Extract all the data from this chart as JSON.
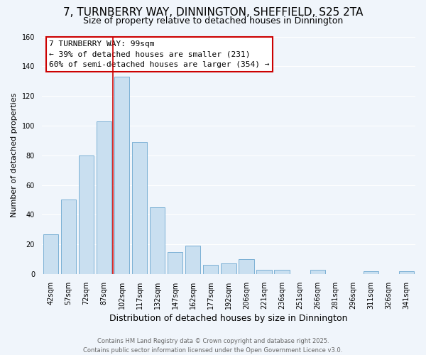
{
  "title": "7, TURNBERRY WAY, DINNINGTON, SHEFFIELD, S25 2TA",
  "subtitle": "Size of property relative to detached houses in Dinnington",
  "xlabel": "Distribution of detached houses by size in Dinnington",
  "ylabel": "Number of detached properties",
  "bar_labels": [
    "42sqm",
    "57sqm",
    "72sqm",
    "87sqm",
    "102sqm",
    "117sqm",
    "132sqm",
    "147sqm",
    "162sqm",
    "177sqm",
    "192sqm",
    "206sqm",
    "221sqm",
    "236sqm",
    "251sqm",
    "266sqm",
    "281sqm",
    "296sqm",
    "311sqm",
    "326sqm",
    "341sqm"
  ],
  "bar_values": [
    27,
    50,
    80,
    103,
    133,
    89,
    45,
    15,
    19,
    6,
    7,
    10,
    3,
    3,
    0,
    3,
    0,
    0,
    2,
    0,
    2
  ],
  "bar_color": "#c9dff0",
  "bar_edge_color": "#7ab0d4",
  "ylim": [
    0,
    160
  ],
  "yticks": [
    0,
    20,
    40,
    60,
    80,
    100,
    120,
    140,
    160
  ],
  "vline_color": "#cc0000",
  "annotation_title": "7 TURNBERRY WAY: 99sqm",
  "annotation_line1": "← 39% of detached houses are smaller (231)",
  "annotation_line2": "60% of semi-detached houses are larger (354) →",
  "annotation_box_color": "#ffffff",
  "annotation_box_edge_color": "#cc0000",
  "footer1": "Contains HM Land Registry data © Crown copyright and database right 2025.",
  "footer2": "Contains public sector information licensed under the Open Government Licence v3.0.",
  "background_color": "#f0f5fb",
  "grid_color": "#ffffff",
  "title_fontsize": 11,
  "subtitle_fontsize": 9,
  "ann_fontsize": 8,
  "footer_fontsize": 6,
  "ylabel_fontsize": 8,
  "xlabel_fontsize": 9,
  "tick_fontsize": 7
}
